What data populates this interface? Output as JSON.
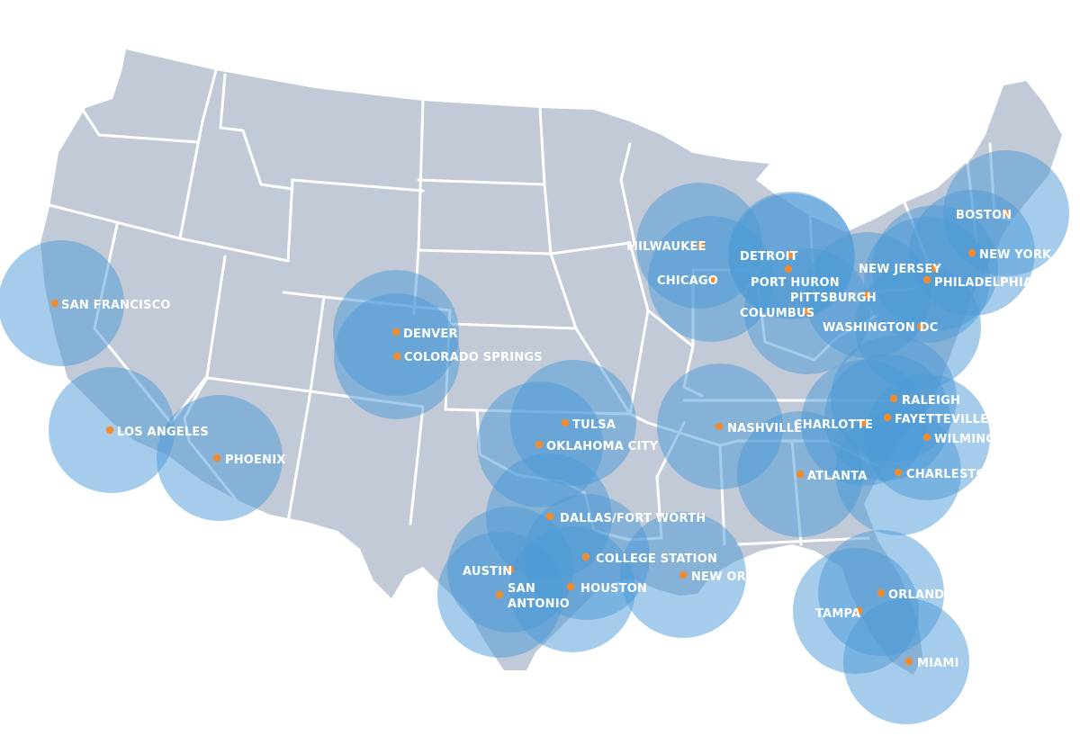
{
  "map": {
    "colors": {
      "land": "#c3cad7",
      "state_borders": "#ffffff",
      "coverage_circle": "#4b9ad8",
      "city_dot": "#f08c2e",
      "label": "#ffffff"
    },
    "cities": [
      {
        "id": "san-francisco",
        "label": "SAN FRANCISCO"
      },
      {
        "id": "los-angeles",
        "label": "LOS ANGELES"
      },
      {
        "id": "phoenix",
        "label": "PHOENIX"
      },
      {
        "id": "denver",
        "label": "DENVER"
      },
      {
        "id": "colorado-springs",
        "label": "COLORADO SPRINGS"
      },
      {
        "id": "tulsa",
        "label": "TULSA"
      },
      {
        "id": "oklahoma-city",
        "label": "OKLAHOMA CITY"
      },
      {
        "id": "dallas-fort-worth",
        "label": "DALLAS/FORT WORTH"
      },
      {
        "id": "college-station",
        "label": "COLLEGE STATION"
      },
      {
        "id": "austin",
        "label": "AUSTIN"
      },
      {
        "id": "san-antonio",
        "label": "SAN ANTONIO",
        "lines": [
          "SAN",
          "ANTONIO"
        ]
      },
      {
        "id": "houston",
        "label": "HOUSTON"
      },
      {
        "id": "new-orleans",
        "label": "NEW ORLEANS"
      },
      {
        "id": "nashville",
        "label": "NASHVILLE"
      },
      {
        "id": "milwaukee",
        "label": "MILWAUKEE"
      },
      {
        "id": "chicago",
        "label": "CHICAGO"
      },
      {
        "id": "detroit",
        "label": "DETROIT"
      },
      {
        "id": "port-huron",
        "label": "PORT HURON"
      },
      {
        "id": "columbus",
        "label": "COLUMBUS"
      },
      {
        "id": "pittsburgh",
        "label": "PITTSBURGH"
      },
      {
        "id": "new-jersey",
        "label": "NEW JERSEY"
      },
      {
        "id": "philadelphia",
        "label": "PHILADELPHIA"
      },
      {
        "id": "washington-dc",
        "label": "WASHINGTON DC"
      },
      {
        "id": "boston",
        "label": "BOSTON"
      },
      {
        "id": "new-york-city",
        "label": "NEW YORK CITY"
      },
      {
        "id": "charlotte",
        "label": "CHARLOTTE"
      },
      {
        "id": "raleigh",
        "label": "RALEIGH"
      },
      {
        "id": "fayetteville",
        "label": "FAYETTEVILLE"
      },
      {
        "id": "wilmington",
        "label": "WILMINGTON"
      },
      {
        "id": "atlanta",
        "label": "ATLANTA"
      },
      {
        "id": "charleston",
        "label": "CHARLESTON"
      },
      {
        "id": "orlando",
        "label": "ORLANDO"
      },
      {
        "id": "tampa",
        "label": "TAMPA"
      },
      {
        "id": "miami",
        "label": "MIAMI"
      }
    ]
  }
}
